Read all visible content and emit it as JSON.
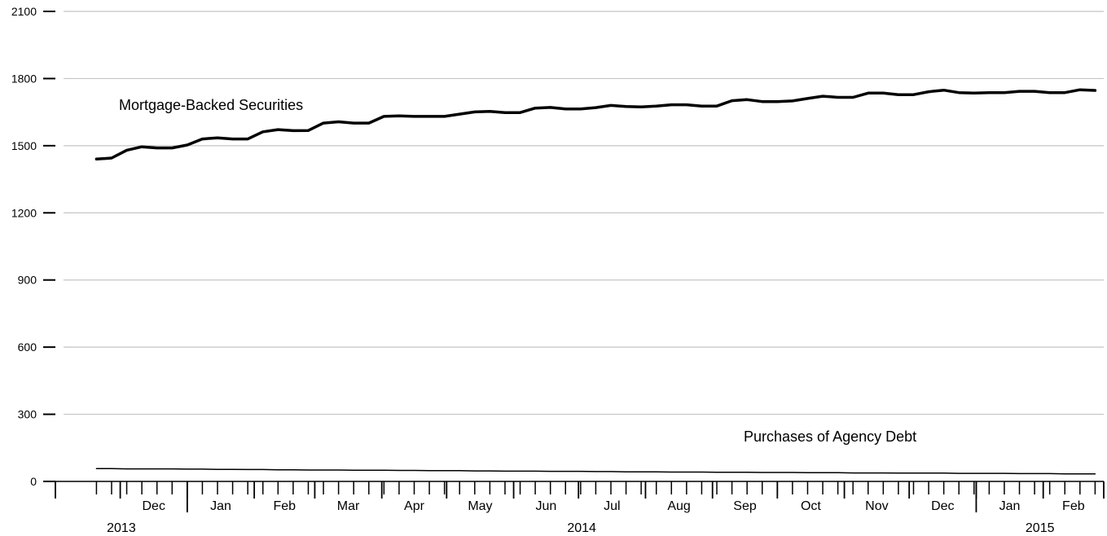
{
  "chart_data": {
    "type": "line",
    "y_ticks": [
      "0",
      "300",
      "600",
      "900",
      "1200",
      "1500",
      "1800",
      "2100"
    ],
    "ylim": [
      0,
      2100
    ],
    "grid": true,
    "x_start": "2013-11-20",
    "x_step": "weekly",
    "months": [
      {
        "label": "Dec",
        "year": "2013"
      },
      {
        "label": "Jan",
        "year": "2014"
      },
      {
        "label": "Feb",
        "year": "2014"
      },
      {
        "label": "Mar",
        "year": "2014"
      },
      {
        "label": "Apr",
        "year": "2014"
      },
      {
        "label": "May",
        "year": "2014"
      },
      {
        "label": "Jun",
        "year": "2014"
      },
      {
        "label": "Jul",
        "year": "2014"
      },
      {
        "label": "Aug",
        "year": "2014"
      },
      {
        "label": "Sep",
        "year": "2014"
      },
      {
        "label": "Oct",
        "year": "2014"
      },
      {
        "label": "Nov",
        "year": "2014"
      },
      {
        "label": "Dec",
        "year": "2014"
      },
      {
        "label": "Jan",
        "year": "2015"
      },
      {
        "label": "Feb",
        "year": "2015"
      }
    ],
    "years": [
      "2013",
      "2014",
      "2015"
    ],
    "series": [
      {
        "name": "Mortgage-Backed Securities",
        "values": [
          1440,
          1445,
          1480,
          1495,
          1490,
          1490,
          1503,
          1530,
          1535,
          1530,
          1530,
          1562,
          1572,
          1567,
          1568,
          1601,
          1607,
          1601,
          1601,
          1631,
          1633,
          1631,
          1631,
          1631,
          1641,
          1651,
          1653,
          1648,
          1648,
          1668,
          1671,
          1664,
          1664,
          1670,
          1680,
          1675,
          1673,
          1677,
          1683,
          1683,
          1677,
          1677,
          1701,
          1706,
          1697,
          1697,
          1700,
          1711,
          1721,
          1716,
          1716,
          1735,
          1735,
          1728,
          1728,
          1741,
          1748,
          1737,
          1735,
          1737,
          1737,
          1743,
          1743,
          1737,
          1737,
          1750,
          1747
        ]
      },
      {
        "name": "Purchases of Agency Debt",
        "values": [
          57,
          57,
          56,
          56,
          56,
          56,
          55,
          55,
          54,
          54,
          53,
          53,
          52,
          52,
          51,
          51,
          51,
          50,
          50,
          50,
          49,
          49,
          48,
          48,
          48,
          47,
          47,
          46,
          46,
          46,
          45,
          45,
          45,
          44,
          44,
          43,
          43,
          43,
          42,
          42,
          42,
          41,
          41,
          41,
          40,
          40,
          40,
          39,
          39,
          39,
          38,
          38,
          38,
          37,
          37,
          37,
          37,
          36,
          36,
          36,
          36,
          35,
          35,
          35,
          34,
          34,
          34
        ]
      }
    ]
  }
}
